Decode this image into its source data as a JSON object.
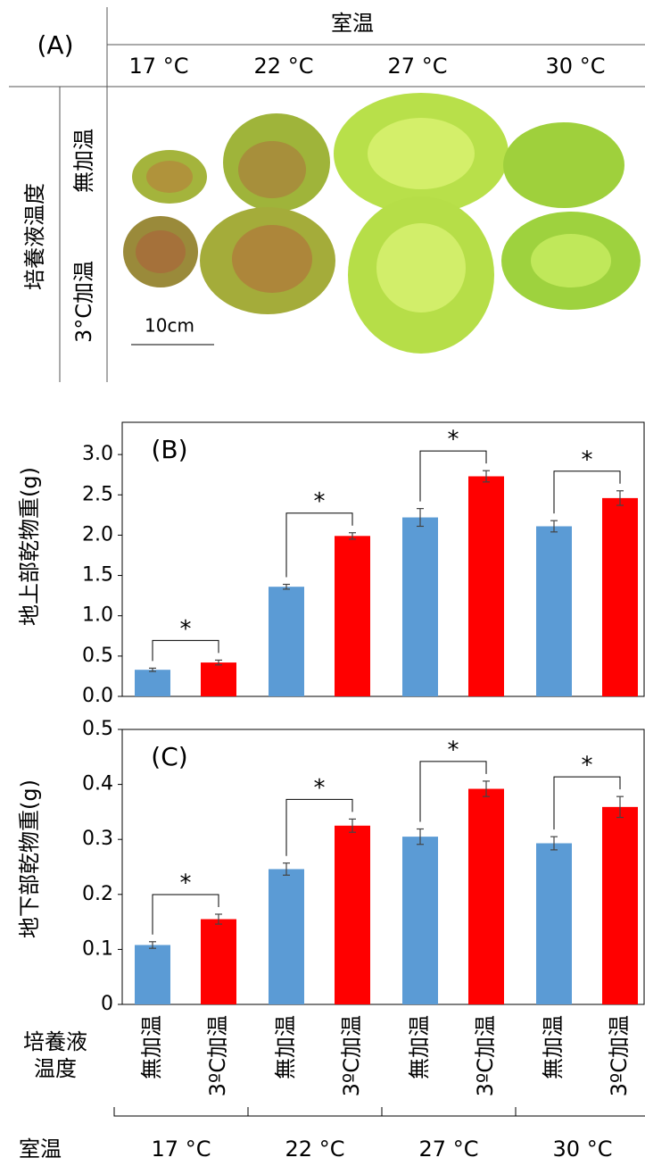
{
  "panel_a": {
    "label": "(A)",
    "column_header": "室温",
    "columns": [
      "17 °C",
      "22 °C",
      "27 °C",
      "30 °C"
    ],
    "row_header": "培養液温度",
    "rows": [
      "無加温",
      "3°C加温"
    ],
    "scale_bar": "10cm"
  },
  "chart_data": [
    {
      "type": "bar",
      "title": "(B)",
      "ylabel": "地上部乾物重(g)",
      "categories": [
        "17 °C",
        "22 °C",
        "27 °C",
        "30 °C"
      ],
      "series": [
        {
          "name": "無加温",
          "color": "#5b9bd5",
          "values": [
            0.33,
            1.36,
            2.22,
            2.11
          ],
          "errors": [
            0.02,
            0.03,
            0.11,
            0.07
          ]
        },
        {
          "name": "3ºC加温",
          "color": "#ff0000",
          "values": [
            0.42,
            1.99,
            2.73,
            2.46
          ],
          "errors": [
            0.03,
            0.04,
            0.07,
            0.09
          ]
        }
      ],
      "significance": [
        "*",
        "*",
        "*",
        "*"
      ],
      "ylim": [
        0,
        3.4
      ],
      "yticks": [
        {
          "value": 0,
          "label": "0.0"
        },
        {
          "value": 0.5,
          "label": "0.5"
        },
        {
          "value": 1,
          "label": "1.0"
        },
        {
          "value": 1.5,
          "label": "1.5"
        },
        {
          "value": 2,
          "label": "2.0"
        },
        {
          "value": 2.5,
          "label": "2.5"
        },
        {
          "value": 3,
          "label": "3.0"
        }
      ],
      "grid": false
    },
    {
      "type": "bar",
      "title": "(C)",
      "ylabel": "地下部乾物重(g)",
      "categories": [
        "17 °C",
        "22 °C",
        "27 °C",
        "30 °C"
      ],
      "series": [
        {
          "name": "無加温",
          "color": "#5b9bd5",
          "values": [
            0.108,
            0.246,
            0.305,
            0.293
          ],
          "errors": [
            0.006,
            0.011,
            0.014,
            0.012
          ]
        },
        {
          "name": "3ºC加温",
          "color": "#ff0000",
          "values": [
            0.155,
            0.325,
            0.392,
            0.359
          ],
          "errors": [
            0.009,
            0.012,
            0.014,
            0.019
          ]
        }
      ],
      "significance": [
        "*",
        "*",
        "*",
        "*"
      ],
      "ylim": [
        0,
        0.5
      ],
      "yticks": [
        0,
        0.1,
        0.2,
        0.3,
        0.4,
        0.5
      ],
      "series_label": [
        "培養液",
        "温度"
      ],
      "group_label": "室温",
      "grid": false
    }
  ]
}
